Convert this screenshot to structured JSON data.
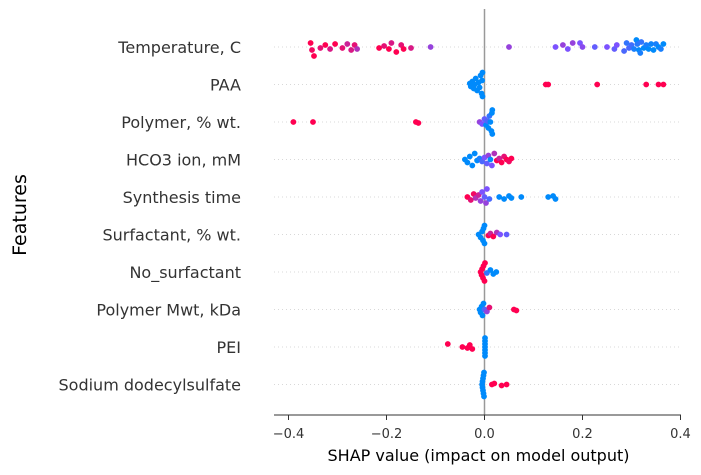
{
  "chart_data": {
    "type": "scatter",
    "subtype": "shap-beeswarm",
    "xlabel": "SHAP value (impact on model output)",
    "ylabel": "Features",
    "xlim": [
      -0.43,
      0.41
    ],
    "xticks": [
      -0.4,
      -0.2,
      0.0,
      0.2,
      0.4
    ],
    "xtick_labels": [
      "−0.4",
      "−0.2",
      "0.0",
      "0.2",
      "0.4"
    ],
    "colors": {
      "low": "#008afb",
      "mid": "#7c52ff",
      "high": "#ff0051"
    },
    "features": [
      {
        "name": "Temperature, C",
        "points": [
          {
            "v": -0.355,
            "c": 1.0,
            "d": -4
          },
          {
            "v": -0.352,
            "c": 0.95,
            "d": 3
          },
          {
            "v": -0.348,
            "c": 1.0,
            "d": 9
          },
          {
            "v": -0.335,
            "c": 0.9,
            "d": 1
          },
          {
            "v": -0.325,
            "c": 1.0,
            "d": -2
          },
          {
            "v": -0.315,
            "c": 0.85,
            "d": 2
          },
          {
            "v": -0.305,
            "c": 1.0,
            "d": -3
          },
          {
            "v": -0.29,
            "c": 0.9,
            "d": 1
          },
          {
            "v": -0.28,
            "c": 0.8,
            "d": -3
          },
          {
            "v": -0.272,
            "c": 0.85,
            "d": 3
          },
          {
            "v": -0.265,
            "c": 0.9,
            "d": -2
          },
          {
            "v": -0.26,
            "c": 0.7,
            "d": 2
          },
          {
            "v": -0.215,
            "c": 1.0,
            "d": 1
          },
          {
            "v": -0.205,
            "c": 0.9,
            "d": -1
          },
          {
            "v": -0.195,
            "c": 1.0,
            "d": 2
          },
          {
            "v": -0.19,
            "c": 0.85,
            "d": -4
          },
          {
            "v": -0.18,
            "c": 1.0,
            "d": 5
          },
          {
            "v": -0.17,
            "c": 0.9,
            "d": -2
          },
          {
            "v": -0.165,
            "c": 1.0,
            "d": 2
          },
          {
            "v": -0.15,
            "c": 0.85,
            "d": 1
          },
          {
            "v": -0.11,
            "c": 0.6,
            "d": 0
          },
          {
            "v": 0.05,
            "c": 0.6,
            "d": 0
          },
          {
            "v": 0.145,
            "c": 0.5,
            "d": 0
          },
          {
            "v": 0.16,
            "c": 0.6,
            "d": -2
          },
          {
            "v": 0.17,
            "c": 0.5,
            "d": 2
          },
          {
            "v": 0.18,
            "c": 0.6,
            "d": -4
          },
          {
            "v": 0.195,
            "c": 0.5,
            "d": -4
          },
          {
            "v": 0.2,
            "c": 0.55,
            "d": 0
          },
          {
            "v": 0.225,
            "c": 0.4,
            "d": 0
          },
          {
            "v": 0.25,
            "c": 0.5,
            "d": 0
          },
          {
            "v": 0.265,
            "c": 0.4,
            "d": 2
          },
          {
            "v": 0.27,
            "c": 0.5,
            "d": -2
          },
          {
            "v": 0.285,
            "c": 0.3,
            "d": 4
          },
          {
            "v": 0.29,
            "c": 0.2,
            "d": -4
          },
          {
            "v": 0.295,
            "c": 0.3,
            "d": 1
          },
          {
            "v": 0.3,
            "c": 0.25,
            "d": -2
          },
          {
            "v": 0.305,
            "c": 0.1,
            "d": 2
          },
          {
            "v": 0.31,
            "c": 0.0,
            "d": -7
          },
          {
            "v": 0.312,
            "c": 0.15,
            "d": -3
          },
          {
            "v": 0.315,
            "c": 0.0,
            "d": 3
          },
          {
            "v": 0.318,
            "c": 0.1,
            "d": 6
          },
          {
            "v": 0.32,
            "c": 0.2,
            "d": -5
          },
          {
            "v": 0.325,
            "c": 0.0,
            "d": 1
          },
          {
            "v": 0.33,
            "c": 0.1,
            "d": -2
          },
          {
            "v": 0.335,
            "c": 0.0,
            "d": 2
          },
          {
            "v": 0.34,
            "c": 0.05,
            "d": -3
          },
          {
            "v": 0.345,
            "c": 0.0,
            "d": 3
          },
          {
            "v": 0.35,
            "c": 0.1,
            "d": -3
          },
          {
            "v": 0.355,
            "c": 0.0,
            "d": 0
          },
          {
            "v": 0.36,
            "c": 0.1,
            "d": 2
          },
          {
            "v": 0.365,
            "c": 0.0,
            "d": -3
          }
        ]
      },
      {
        "name": "PAA",
        "points": [
          {
            "v": -0.03,
            "c": 0.0,
            "d": -1
          },
          {
            "v": -0.028,
            "c": 0.0,
            "d": 2
          },
          {
            "v": -0.025,
            "c": 0.0,
            "d": -3
          },
          {
            "v": -0.022,
            "c": 0.0,
            "d": 4
          },
          {
            "v": -0.02,
            "c": 0.0,
            "d": 0
          },
          {
            "v": -0.018,
            "c": 0.0,
            "d": -6
          },
          {
            "v": -0.015,
            "c": 0.0,
            "d": 6
          },
          {
            "v": -0.012,
            "c": 0.0,
            "d": -2
          },
          {
            "v": -0.01,
            "c": 0.0,
            "d": 3
          },
          {
            "v": -0.008,
            "c": 0.0,
            "d": -9
          },
          {
            "v": -0.006,
            "c": 0.0,
            "d": 9
          },
          {
            "v": -0.005,
            "c": 0.0,
            "d": -4
          },
          {
            "v": -0.004,
            "c": 0.0,
            "d": 12
          },
          {
            "v": -0.004,
            "c": 0.0,
            "d": -12
          },
          {
            "v": 0.125,
            "c": 1.0,
            "d": 0
          },
          {
            "v": 0.13,
            "c": 1.0,
            "d": 0
          },
          {
            "v": 0.23,
            "c": 1.0,
            "d": 0
          },
          {
            "v": 0.33,
            "c": 1.0,
            "d": 0
          },
          {
            "v": 0.355,
            "c": 1.0,
            "d": 0
          },
          {
            "v": 0.365,
            "c": 1.0,
            "d": 0
          }
        ]
      },
      {
        "name": "Polymer, % wt.",
        "points": [
          {
            "v": -0.39,
            "c": 1.0,
            "d": 0
          },
          {
            "v": -0.35,
            "c": 1.0,
            "d": 0
          },
          {
            "v": -0.14,
            "c": 1.0,
            "d": 0
          },
          {
            "v": -0.135,
            "c": 1.0,
            "d": 1
          },
          {
            "v": -0.01,
            "c": 0.6,
            "d": 0
          },
          {
            "v": -0.005,
            "c": 0.5,
            "d": 2
          },
          {
            "v": 0.0,
            "c": 0.4,
            "d": -3
          },
          {
            "v": 0.003,
            "c": 0.0,
            "d": 3
          },
          {
            "v": 0.006,
            "c": 0.3,
            "d": -1
          },
          {
            "v": 0.008,
            "c": 0.0,
            "d": 6
          },
          {
            "v": 0.01,
            "c": 0.2,
            "d": -6
          },
          {
            "v": 0.012,
            "c": 0.0,
            "d": 0
          },
          {
            "v": 0.014,
            "c": 0.0,
            "d": 9
          },
          {
            "v": 0.015,
            "c": 0.0,
            "d": -9
          },
          {
            "v": 0.016,
            "c": 0.0,
            "d": 12
          },
          {
            "v": 0.016,
            "c": 0.0,
            "d": -12
          }
        ]
      },
      {
        "name": "HCO3 ion, mM",
        "points": [
          {
            "v": -0.04,
            "c": 0.0,
            "d": 0
          },
          {
            "v": -0.035,
            "c": 0.0,
            "d": 3
          },
          {
            "v": -0.03,
            "c": 0.0,
            "d": -3
          },
          {
            "v": -0.025,
            "c": 0.0,
            "d": 6
          },
          {
            "v": -0.02,
            "c": 0.0,
            "d": -6
          },
          {
            "v": -0.015,
            "c": 0.0,
            "d": 1
          },
          {
            "v": -0.01,
            "c": 0.1,
            "d": -1
          },
          {
            "v": -0.005,
            "c": 0.3,
            "d": 2
          },
          {
            "v": 0.0,
            "c": 0.5,
            "d": -2
          },
          {
            "v": 0.005,
            "c": 0.4,
            "d": 4
          },
          {
            "v": 0.008,
            "c": 0.6,
            "d": -4
          },
          {
            "v": 0.012,
            "c": 0.0,
            "d": 0
          },
          {
            "v": 0.015,
            "c": 0.5,
            "d": 6
          },
          {
            "v": 0.02,
            "c": 0.7,
            "d": -6
          },
          {
            "v": 0.025,
            "c": 1.0,
            "d": 1
          },
          {
            "v": 0.03,
            "c": 0.8,
            "d": -1
          },
          {
            "v": 0.035,
            "c": 1.0,
            "d": 3
          },
          {
            "v": 0.04,
            "c": 0.9,
            "d": -3
          },
          {
            "v": 0.045,
            "c": 1.0,
            "d": 0
          },
          {
            "v": 0.05,
            "c": 0.95,
            "d": 2
          },
          {
            "v": 0.055,
            "c": 1.0,
            "d": -1
          }
        ]
      },
      {
        "name": "Synthesis time",
        "points": [
          {
            "v": -0.035,
            "c": 1.0,
            "d": 0
          },
          {
            "v": -0.028,
            "c": 0.9,
            "d": 3
          },
          {
            "v": -0.022,
            "c": 0.95,
            "d": -3
          },
          {
            "v": -0.018,
            "c": 0.7,
            "d": 1
          },
          {
            "v": -0.012,
            "c": 0.8,
            "d": -2
          },
          {
            "v": -0.008,
            "c": 0.6,
            "d": 4
          },
          {
            "v": -0.005,
            "c": 0.5,
            "d": -5
          },
          {
            "v": 0.0,
            "c": 0.4,
            "d": 0
          },
          {
            "v": 0.003,
            "c": 0.6,
            "d": 6
          },
          {
            "v": 0.005,
            "c": 0.5,
            "d": -8
          },
          {
            "v": 0.01,
            "c": 0.3,
            "d": 2
          },
          {
            "v": 0.03,
            "c": 0.0,
            "d": 0
          },
          {
            "v": 0.04,
            "c": 0.0,
            "d": 2
          },
          {
            "v": 0.05,
            "c": 0.0,
            "d": -1
          },
          {
            "v": 0.055,
            "c": 0.0,
            "d": 1
          },
          {
            "v": 0.075,
            "c": 0.0,
            "d": 0
          },
          {
            "v": 0.13,
            "c": 0.0,
            "d": 0
          },
          {
            "v": 0.14,
            "c": 0.0,
            "d": -1
          },
          {
            "v": 0.145,
            "c": 0.0,
            "d": 2
          }
        ]
      },
      {
        "name": "Surfactant, % wt.",
        "points": [
          {
            "v": -0.012,
            "c": 0.0,
            "d": 0
          },
          {
            "v": -0.008,
            "c": 0.0,
            "d": 3
          },
          {
            "v": -0.005,
            "c": 0.0,
            "d": -3
          },
          {
            "v": -0.003,
            "c": 0.0,
            "d": 6
          },
          {
            "v": -0.002,
            "c": 0.0,
            "d": -6
          },
          {
            "v": 0.0,
            "c": 0.0,
            "d": 9
          },
          {
            "v": 0.0,
            "c": 0.0,
            "d": -9
          },
          {
            "v": 0.008,
            "c": 1.0,
            "d": 1
          },
          {
            "v": 0.012,
            "c": 0.8,
            "d": -1
          },
          {
            "v": 0.018,
            "c": 1.0,
            "d": 2
          },
          {
            "v": 0.025,
            "c": 0.7,
            "d": -2
          },
          {
            "v": 0.032,
            "c": 0.5,
            "d": 0
          },
          {
            "v": 0.045,
            "c": 0.4,
            "d": 0
          }
        ]
      },
      {
        "name": "No_surfactant",
        "points": [
          {
            "v": -0.008,
            "c": 1.0,
            "d": 0
          },
          {
            "v": -0.006,
            "c": 1.0,
            "d": 3
          },
          {
            "v": -0.005,
            "c": 1.0,
            "d": -3
          },
          {
            "v": -0.003,
            "c": 1.0,
            "d": 6
          },
          {
            "v": -0.002,
            "c": 1.0,
            "d": -6
          },
          {
            "v": 0.0,
            "c": 1.0,
            "d": 9
          },
          {
            "v": 0.001,
            "c": 1.0,
            "d": -9
          },
          {
            "v": 0.005,
            "c": 0.2,
            "d": 1
          },
          {
            "v": 0.012,
            "c": 0.0,
            "d": -2
          },
          {
            "v": 0.018,
            "c": 0.0,
            "d": 2
          },
          {
            "v": 0.024,
            "c": 0.0,
            "d": 0
          }
        ]
      },
      {
        "name": "Polymer Mwt, kDa",
        "points": [
          {
            "v": -0.01,
            "c": 0.0,
            "d": 0
          },
          {
            "v": -0.008,
            "c": 0.0,
            "d": 3
          },
          {
            "v": -0.006,
            "c": 0.0,
            "d": -3
          },
          {
            "v": -0.004,
            "c": 0.0,
            "d": 6
          },
          {
            "v": -0.002,
            "c": 0.0,
            "d": -6
          },
          {
            "v": 0.0,
            "c": 0.3,
            "d": 0
          },
          {
            "v": 0.005,
            "c": 0.6,
            "d": 2
          },
          {
            "v": 0.01,
            "c": 0.9,
            "d": -2
          },
          {
            "v": 0.06,
            "c": 1.0,
            "d": 0
          },
          {
            "v": 0.065,
            "c": 1.0,
            "d": 1
          }
        ]
      },
      {
        "name": "PEI",
        "points": [
          {
            "v": -0.075,
            "c": 1.0,
            "d": -3
          },
          {
            "v": -0.045,
            "c": 1.0,
            "d": 0
          },
          {
            "v": -0.035,
            "c": 1.0,
            "d": 1
          },
          {
            "v": -0.03,
            "c": 1.0,
            "d": -2
          },
          {
            "v": -0.025,
            "c": 1.0,
            "d": 2
          },
          {
            "v": 0.001,
            "c": 0.0,
            "d": 0
          },
          {
            "v": 0.001,
            "c": 0.0,
            "d": 3
          },
          {
            "v": 0.001,
            "c": 0.0,
            "d": -3
          },
          {
            "v": 0.001,
            "c": 0.0,
            "d": 6
          },
          {
            "v": 0.001,
            "c": 0.0,
            "d": -6
          },
          {
            "v": 0.001,
            "c": 0.0,
            "d": 9
          },
          {
            "v": 0.001,
            "c": 0.0,
            "d": -9
          }
        ]
      },
      {
        "name": "Sodium dodecylsulfate",
        "points": [
          {
            "v": -0.005,
            "c": 0.0,
            "d": 0
          },
          {
            "v": -0.004,
            "c": 0.0,
            "d": 3
          },
          {
            "v": -0.004,
            "c": 0.0,
            "d": -3
          },
          {
            "v": -0.003,
            "c": 0.0,
            "d": 6
          },
          {
            "v": -0.003,
            "c": 0.0,
            "d": -6
          },
          {
            "v": -0.002,
            "c": 0.0,
            "d": 9
          },
          {
            "v": -0.002,
            "c": 0.0,
            "d": -9
          },
          {
            "v": -0.001,
            "c": 0.0,
            "d": 12
          },
          {
            "v": -0.001,
            "c": 0.0,
            "d": -12
          },
          {
            "v": 0.015,
            "c": 1.0,
            "d": 0
          },
          {
            "v": 0.02,
            "c": 1.0,
            "d": -1
          },
          {
            "v": 0.035,
            "c": 1.0,
            "d": 1
          },
          {
            "v": 0.045,
            "c": 1.0,
            "d": 0
          }
        ]
      }
    ]
  }
}
